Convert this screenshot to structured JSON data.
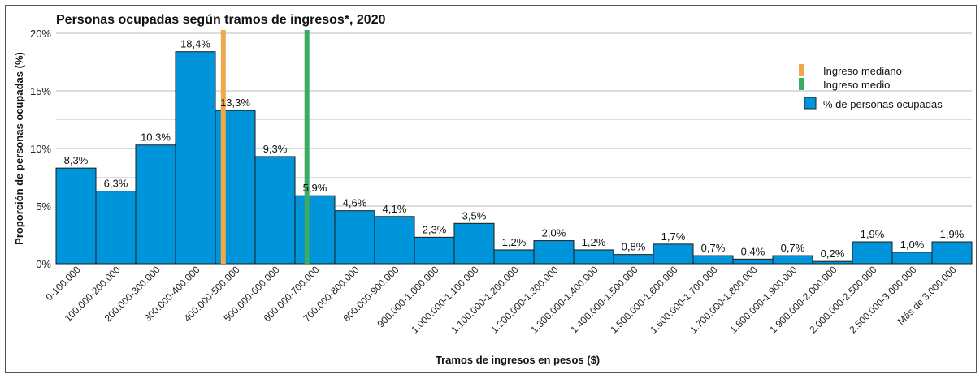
{
  "chart_data": {
    "type": "bar",
    "title": "Personas ocupadas según tramos de ingresos*, 2020",
    "xlabel": "Tramos de ingresos en pesos ($)",
    "ylabel": "Proporción de personas ocupadas (%)",
    "ylim": [
      0,
      20
    ],
    "yticks": [
      "0%",
      "5%",
      "10%",
      "15%",
      "20%"
    ],
    "grid": true,
    "legend_position": "top-right",
    "categories": [
      "0-100.000",
      "100.000-200.000",
      "200.000-300.000",
      "300.000-400.000",
      "400.000-500.000",
      "500.000-600.000",
      "600.000-700.000",
      "700.000-800.000",
      "800.000-900.000",
      "900.000-1.000.000",
      "1.000.000-1.100.000",
      "1.100.000-1.200.000",
      "1.200.000-1.300.000",
      "1.300.000-1.400.000",
      "1.400.000-1.500.000",
      "1.500.000-1.600.000",
      "1.600.000-1.700.000",
      "1.700.000-1.800.000",
      "1.800.000-1.900.000",
      "1.900.000-2.000.000",
      "2.000.000-2.500.000",
      "2.500.000-3.000.000",
      "Más de 3.000.000"
    ],
    "series": [
      {
        "name": "% de personas ocupadas",
        "color": "#0095DA",
        "values": [
          8.3,
          6.3,
          10.3,
          18.4,
          13.3,
          9.3,
          5.9,
          4.6,
          4.1,
          2.3,
          3.5,
          1.2,
          2.0,
          1.2,
          0.8,
          1.7,
          0.7,
          0.4,
          0.7,
          0.2,
          1.9,
          1.0,
          1.9
        ],
        "labels": [
          "8,3%",
          "6,3%",
          "10,3%",
          "18,4%",
          "13,3%",
          "9,3%",
          "5,9%",
          "4,6%",
          "4,1%",
          "2,3%",
          "3,5%",
          "1,2%",
          "2,0%",
          "1,2%",
          "0,8%",
          "1,7%",
          "0,7%",
          "0,4%",
          "0,7%",
          "0,2%",
          "1,9%",
          "1,0%",
          "1,9%"
        ]
      }
    ],
    "reference_lines": [
      {
        "name": "Ingreso mediano",
        "color": "#F0A848",
        "category_position": 4.2
      },
      {
        "name": "Ingreso medio",
        "color": "#3DAA66",
        "category_position": 6.3
      }
    ]
  }
}
